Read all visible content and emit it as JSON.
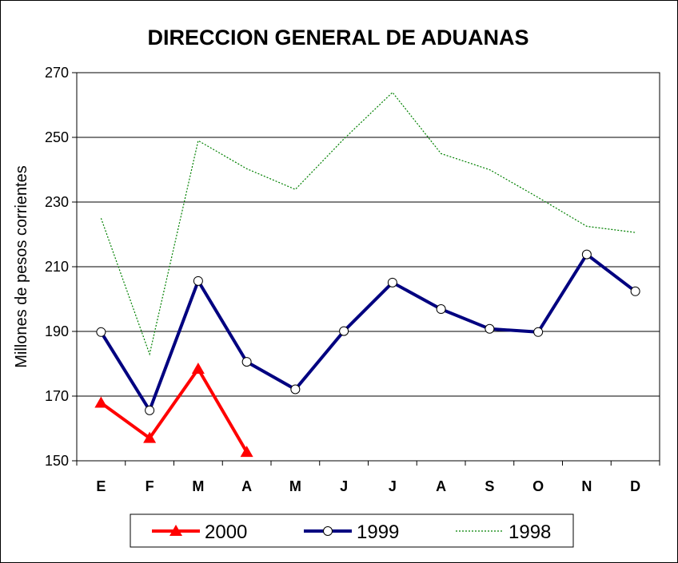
{
  "chart_data": {
    "type": "line",
    "title": "DIRECCION GENERAL DE ADUANAS",
    "ylabel": "Millones de pesos corrientes",
    "xlabel": "",
    "categories": [
      "E",
      "F",
      "M",
      "A",
      "M",
      "J",
      "J",
      "A",
      "S",
      "O",
      "N",
      "D"
    ],
    "ylim": [
      150,
      270
    ],
    "yticks": [
      150,
      170,
      190,
      210,
      230,
      250,
      270
    ],
    "grid": true,
    "legend_position": "bottom",
    "series": [
      {
        "name": "2000",
        "color": "#ff0000",
        "marker": "triangle",
        "style": "solid",
        "values": [
          167.9,
          157,
          178.4,
          152.7,
          null,
          null,
          null,
          null,
          null,
          null,
          null,
          null
        ]
      },
      {
        "name": "1999",
        "color": "#000080",
        "marker": "circle",
        "style": "solid",
        "values": [
          189.8,
          165.6,
          205.6,
          180.6,
          172.1,
          190.1,
          205.1,
          196.9,
          190.8,
          189.8,
          213.8,
          202.4
        ]
      },
      {
        "name": "1998",
        "color": "#008000",
        "marker": "none",
        "style": "dotted",
        "values": [
          225,
          183,
          249,
          240.3,
          233.9,
          249.5,
          263.9,
          245,
          240,
          231.4,
          222.5,
          220.6
        ]
      }
    ]
  }
}
